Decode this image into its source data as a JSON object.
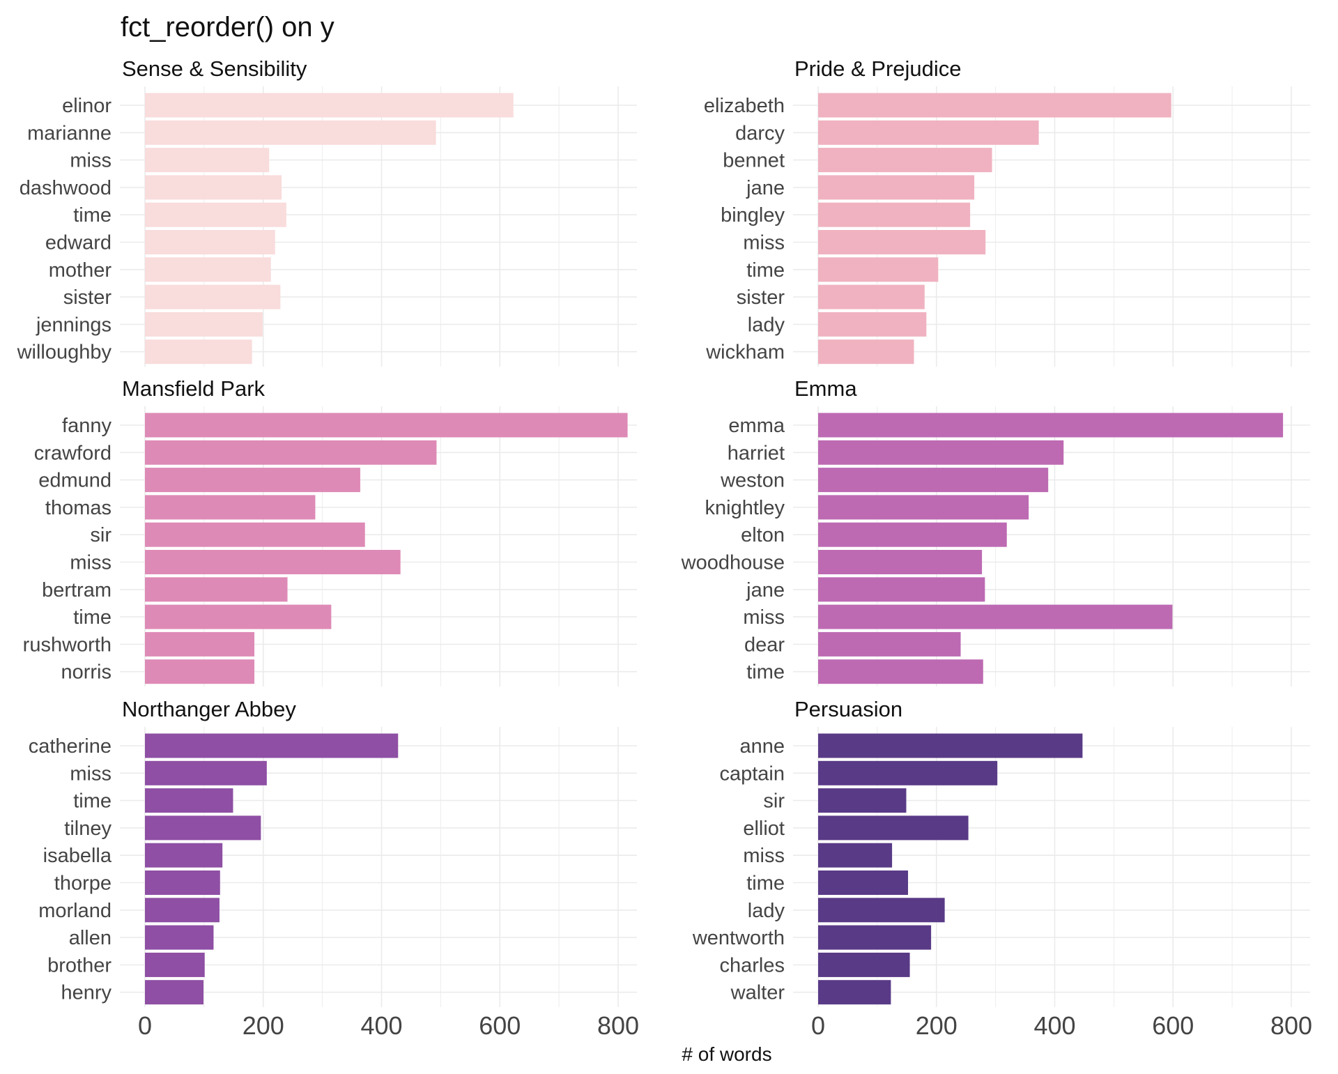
{
  "chart_data": {
    "type": "bar",
    "orientation": "horizontal",
    "title": "fct_reorder() on y",
    "xlabel": "# of words",
    "xlim": [
      0,
      850
    ],
    "xticks": [
      0,
      200,
      400,
      600,
      800
    ],
    "grid": true,
    "facets": [
      {
        "title": "Sense & Sensibility",
        "color": "#F9DCDC",
        "categories": [
          "elinor",
          "marianne",
          "miss",
          "dashwood",
          "time",
          "edward",
          "mother",
          "sister",
          "jennings",
          "willoughby"
        ],
        "values": [
          623,
          492,
          210,
          231,
          239,
          220,
          213,
          229,
          199,
          181
        ]
      },
      {
        "title": "Pride & Prejudice",
        "color": "#F0B2C0",
        "categories": [
          "elizabeth",
          "darcy",
          "bennet",
          "jane",
          "bingley",
          "miss",
          "time",
          "sister",
          "lady",
          "wickham"
        ],
        "values": [
          597,
          373,
          294,
          264,
          257,
          283,
          203,
          180,
          183,
          162
        ]
      },
      {
        "title": "Mansfield Park",
        "color": "#DE8AB6",
        "categories": [
          "fanny",
          "crawford",
          "edmund",
          "thomas",
          "sir",
          "miss",
          "bertram",
          "time",
          "rushworth",
          "norris"
        ],
        "values": [
          816,
          493,
          364,
          288,
          372,
          432,
          241,
          315,
          185,
          185
        ]
      },
      {
        "title": "Emma",
        "color": "#BD6AB3",
        "categories": [
          "emma",
          "harriet",
          "weston",
          "knightley",
          "elton",
          "woodhouse",
          "jane",
          "miss",
          "dear",
          "time"
        ],
        "values": [
          786,
          415,
          389,
          356,
          319,
          277,
          282,
          599,
          241,
          279
        ]
      },
      {
        "title": "Northanger Abbey",
        "color": "#8E4FA4",
        "categories": [
          "catherine",
          "miss",
          "time",
          "tilney",
          "isabella",
          "thorpe",
          "morland",
          "allen",
          "brother",
          "henry"
        ],
        "values": [
          428,
          206,
          149,
          196,
          131,
          127,
          126,
          116,
          101,
          99
        ]
      },
      {
        "title": "Persuasion",
        "color": "#593A87",
        "categories": [
          "anne",
          "captain",
          "sir",
          "elliot",
          "miss",
          "time",
          "lady",
          "wentworth",
          "charles",
          "walter"
        ],
        "values": [
          447,
          303,
          149,
          254,
          125,
          152,
          214,
          191,
          155,
          123
        ]
      }
    ]
  }
}
